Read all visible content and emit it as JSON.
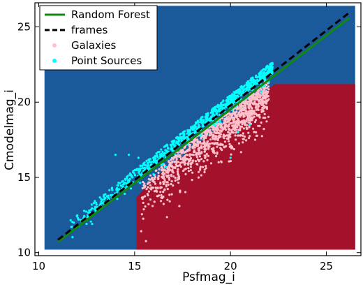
{
  "chart_data": {
    "type": "scatter",
    "xlabel": "Psfmag_i",
    "ylabel": "Cmodelmag_i",
    "xlim": [
      9.8,
      26.8
    ],
    "ylim": [
      9.8,
      26.6
    ],
    "xticks": [
      10,
      15,
      20,
      25
    ],
    "yticks": [
      10,
      15,
      20,
      25
    ],
    "legend_position": "top-left",
    "grid": false,
    "colors": {
      "point_source_region": "#1b5a9a",
      "galaxy_region": "#a3122a",
      "random_forest_line": "#118811",
      "frames_line": "#000000",
      "galaxies": "#ffc0cb",
      "point_sources": "#00ffff"
    },
    "classification_regions": {
      "extent": {
        "x": [
          10.3,
          26.5
        ],
        "y": [
          10.2,
          26.4
        ]
      },
      "galaxy_region_polygon": [
        [
          15.1,
          10.2
        ],
        [
          26.5,
          10.2
        ],
        [
          26.5,
          21.2
        ],
        [
          22.3,
          21.2
        ],
        [
          16.0,
          14.9
        ],
        [
          15.1,
          13.7
        ]
      ]
    },
    "series": [
      {
        "name": "Random Forest",
        "kind": "line",
        "x": [
          11.0,
          26.2
        ],
        "y": [
          10.7,
          25.6
        ]
      },
      {
        "name": "frames",
        "kind": "dashed-line",
        "x": [
          11.0,
          26.2
        ],
        "y": [
          10.85,
          25.95
        ]
      },
      {
        "name": "Galaxies",
        "kind": "scatter",
        "count": 1200,
        "x_range": [
          15.3,
          22.0
        ],
        "spread": [
          0.2,
          2.6
        ]
      },
      {
        "name": "Point Sources",
        "kind": "scatter",
        "count": 900,
        "x_range": [
          11.2,
          22.2
        ],
        "spread": [
          -0.1,
          0.6
        ]
      }
    ],
    "outliers": [
      [
        14.0,
        16.5
      ],
      [
        14.7,
        16.5
      ],
      [
        15.2,
        16.3
      ],
      [
        20.0,
        16.3
      ],
      [
        21.0,
        18.5
      ],
      [
        20.4,
        18.0
      ]
    ]
  },
  "legend": {
    "items": [
      {
        "label": "Random Forest",
        "symbol": "line",
        "color": "#118811"
      },
      {
        "label": "frames",
        "symbol": "dashed",
        "color": "#000000"
      },
      {
        "label": "Galaxies",
        "symbol": "dot",
        "color": "#ffc0cb"
      },
      {
        "label": "Point Sources",
        "symbol": "dot",
        "color": "#00ffff"
      }
    ]
  }
}
